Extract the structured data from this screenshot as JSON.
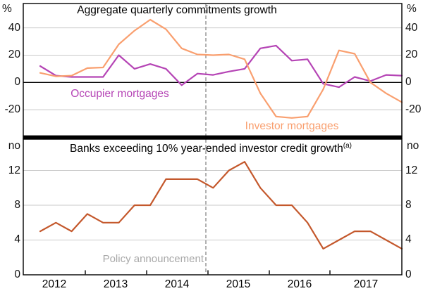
{
  "chart_data": {
    "type": "line",
    "x_quarters": [
      "2012 Q1",
      "2012 Q2",
      "2012 Q3",
      "2012 Q4",
      "2013 Q1",
      "2013 Q2",
      "2013 Q3",
      "2013 Q4",
      "2014 Q1",
      "2014 Q2",
      "2014 Q3",
      "2014 Q4",
      "2015 Q1",
      "2015 Q2",
      "2015 Q3",
      "2015 Q4",
      "2016 Q1",
      "2016 Q2",
      "2016 Q3",
      "2016 Q4",
      "2017 Q1",
      "2017 Q2",
      "2017 Q3",
      "2017 Q4"
    ],
    "year_labels": [
      "2012",
      "2013",
      "2014",
      "2015",
      "2016",
      "2017"
    ],
    "panels": [
      {
        "title": "Aggregate quarterly commitments growth",
        "unit_left": "%",
        "unit_right": "%",
        "yticks": [
          40,
          20,
          0,
          -20
        ],
        "ylim": [
          -36,
          58
        ],
        "grid": true,
        "series": [
          {
            "name": "Occupier mortgages",
            "color": "#B544B5",
            "values": [
              12,
              5,
              4,
              4,
              4,
              20,
              10,
              13.5,
              10,
              -2,
              6.5,
              5.5,
              8,
              10,
              25,
              27,
              16,
              17,
              -1,
              -3.5,
              4,
              1,
              5.5,
              5
            ]
          },
          {
            "name": "Investor mortgages",
            "color": "#F99F6F",
            "values": [
              7,
              4.5,
              5,
              10.5,
              11,
              28,
              38,
              46,
              39,
              25,
              20.5,
              20,
              20.5,
              17,
              -8,
              -25,
              -26,
              -25,
              -5,
              23.5,
              21,
              0,
              -8,
              -14.5
            ]
          }
        ]
      },
      {
        "title": "Banks exceeding 10% year-ended investor credit growth",
        "title_superscript": "(a)",
        "unit_left": "no",
        "unit_right": "no",
        "yticks": [
          12,
          8,
          4,
          0
        ],
        "ylim": [
          0,
          15.5
        ],
        "grid": true,
        "series": [
          {
            "name": "Banks exceeding 10% year-ended investor credit growth",
            "color": "#C4582C",
            "values": [
              5,
              6,
              5,
              7,
              6,
              6,
              8,
              8,
              11,
              11,
              11,
              10,
              12,
              13,
              10,
              8,
              8,
              6,
              3,
              4,
              5,
              5,
              4,
              3
            ]
          }
        ]
      }
    ],
    "annotation": {
      "label": "Policy announcement",
      "x": "2014 Q4",
      "style": "dashed-gray-vertical-line",
      "line_color": "#999999",
      "label_color": "#A8A8A8"
    },
    "colors": {
      "grid": "#C9C9C9",
      "axis": "#000000",
      "text": "#111111"
    }
  }
}
